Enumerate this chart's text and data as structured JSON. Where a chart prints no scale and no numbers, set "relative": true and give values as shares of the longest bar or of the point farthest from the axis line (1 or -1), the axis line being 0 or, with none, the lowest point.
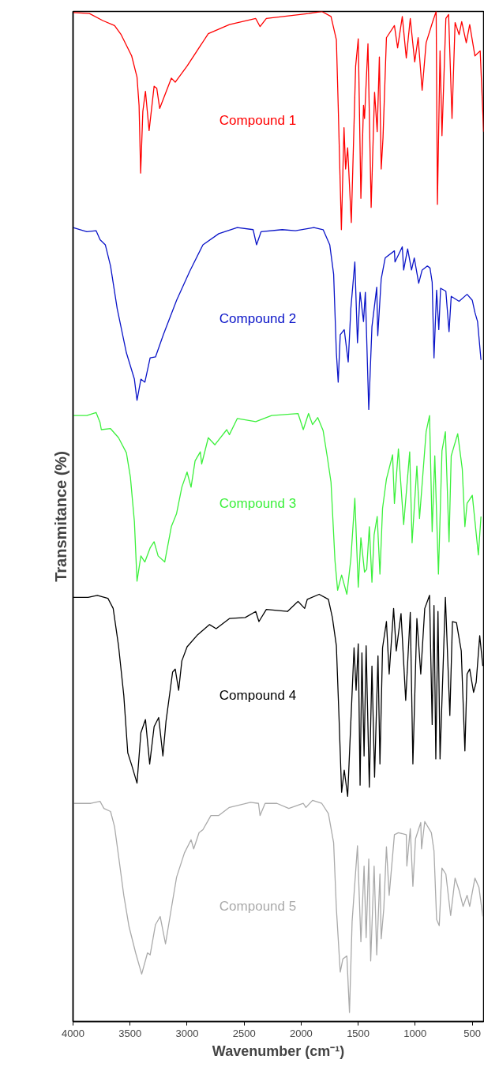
{
  "chart_data": {
    "type": "line",
    "relative": true,
    "xlabel": "Wavenumber (cm⁻¹)",
    "ylabel": "Transmitance (%)",
    "xlim": [
      4000,
      400
    ],
    "xticks": [
      4000,
      3500,
      3000,
      2500,
      2000,
      1500,
      1000,
      500
    ],
    "grid": false,
    "line_style": "solid",
    "marker": "none",
    "series": [
      {
        "name": "Compound 1",
        "color": "#ff0000",
        "x": [
          3999,
          3856,
          3740,
          3636,
          3578,
          3486,
          3439,
          3421,
          3407,
          3388,
          3365,
          3333,
          3289,
          3266,
          3240,
          3138,
          3104,
          3000,
          2814,
          2629,
          2398,
          2360,
          2305,
          1935,
          1819,
          1738,
          1691,
          1675,
          1647,
          1624,
          1610,
          1592,
          1560,
          1522,
          1499,
          1476,
          1453,
          1444,
          1414,
          1386,
          1356,
          1333,
          1314,
          1298,
          1282,
          1252,
          1182,
          1154,
          1113,
          1078,
          1043,
          1004,
          974,
          939,
          904,
          846,
          816,
          805,
          782,
          765,
          731,
          707,
          677,
          650,
          615,
          592,
          552,
          522,
          476,
          430,
          400
        ],
        "values": [
          0.999,
          0.998,
          0.991,
          0.986,
          0.977,
          0.956,
          0.935,
          0.907,
          0.84,
          0.901,
          0.921,
          0.882,
          0.926,
          0.924,
          0.904,
          0.934,
          0.93,
          0.946,
          0.978,
          0.987,
          0.993,
          0.985,
          0.993,
          0.998,
          1.0,
          0.995,
          0.972,
          0.907,
          0.784,
          0.885,
          0.844,
          0.865,
          0.791,
          0.946,
          0.973,
          0.815,
          0.907,
          0.894,
          0.968,
          0.806,
          0.92,
          0.881,
          0.955,
          0.844,
          0.875,
          0.974,
          0.986,
          0.964,
          0.995,
          0.954,
          0.993,
          0.95,
          0.974,
          0.922,
          0.969,
          0.99,
          1.0,
          0.809,
          0.961,
          0.877,
          0.993,
          0.997,
          0.894,
          0.989,
          0.977,
          0.99,
          0.969,
          0.987,
          0.956,
          0.961,
          0.881
        ]
      },
      {
        "name": "Compound 2",
        "color": "#0a14c8",
        "x": [
          4000,
          3879,
          3798,
          3763,
          3717,
          3671,
          3613,
          3532,
          3462,
          3439,
          3405,
          3370,
          3324,
          3277,
          3208,
          3092,
          2976,
          2861,
          2722,
          2560,
          2421,
          2391,
          2351,
          2166,
          2050,
          1888,
          1807,
          1749,
          1715,
          1691,
          1675,
          1657,
          1622,
          1587,
          1564,
          1529,
          1506,
          1483,
          1453,
          1437,
          1407,
          1379,
          1337,
          1328,
          1298,
          1263,
          1182,
          1177,
          1113,
          1101,
          1066,
          1032,
          1008,
          969,
          939,
          893,
          870,
          851,
          835,
          812,
          793,
          777,
          731,
          703,
          684,
          615,
          545,
          499,
          476,
          453,
          423
        ],
        "values": [
          0.786,
          0.782,
          0.783,
          0.774,
          0.769,
          0.748,
          0.706,
          0.662,
          0.636,
          0.615,
          0.636,
          0.633,
          0.657,
          0.658,
          0.68,
          0.714,
          0.743,
          0.769,
          0.78,
          0.786,
          0.784,
          0.769,
          0.782,
          0.784,
          0.783,
          0.786,
          0.784,
          0.769,
          0.74,
          0.662,
          0.633,
          0.68,
          0.685,
          0.653,
          0.706,
          0.752,
          0.672,
          0.722,
          0.693,
          0.722,
          0.606,
          0.688,
          0.727,
          0.679,
          0.735,
          0.756,
          0.763,
          0.752,
          0.767,
          0.744,
          0.765,
          0.744,
          0.756,
          0.731,
          0.744,
          0.748,
          0.746,
          0.732,
          0.657,
          0.724,
          0.685,
          0.726,
          0.723,
          0.683,
          0.718,
          0.713,
          0.72,
          0.714,
          0.702,
          0.693,
          0.655
        ]
      },
      {
        "name": "Compound 3",
        "color": "#3cf03c",
        "x": [
          4000,
          3879,
          3798,
          3763,
          3752,
          3671,
          3601,
          3532,
          3497,
          3462,
          3439,
          3405,
          3370,
          3324,
          3289,
          3254,
          3196,
          3138,
          3092,
          3046,
          3000,
          2965,
          2930,
          2884,
          2872,
          2814,
          2756,
          2652,
          2629,
          2560,
          2398,
          2259,
          2027,
          1981,
          1935,
          1900,
          1854,
          1807,
          1772,
          1738,
          1703,
          1680,
          1645,
          1599,
          1564,
          1529,
          1499,
          1476,
          1444,
          1425,
          1402,
          1379,
          1360,
          1333,
          1309,
          1286,
          1252,
          1198,
          1182,
          1147,
          1101,
          1048,
          1027,
          985,
          962,
          904,
          874,
          851,
          828,
          796,
          765,
          735,
          703,
          684,
          627,
          587,
          564,
          545,
          499,
          446,
          423
        ],
        "values": [
          0.6,
          0.6,
          0.603,
          0.593,
          0.586,
          0.587,
          0.578,
          0.563,
          0.539,
          0.495,
          0.436,
          0.461,
          0.455,
          0.469,
          0.475,
          0.461,
          0.455,
          0.49,
          0.503,
          0.529,
          0.544,
          0.529,
          0.555,
          0.564,
          0.552,
          0.578,
          0.571,
          0.586,
          0.581,
          0.597,
          0.594,
          0.6,
          0.602,
          0.586,
          0.602,
          0.591,
          0.598,
          0.585,
          0.56,
          0.534,
          0.456,
          0.427,
          0.442,
          0.423,
          0.458,
          0.518,
          0.43,
          0.479,
          0.445,
          0.448,
          0.49,
          0.435,
          0.482,
          0.5,
          0.443,
          0.508,
          0.537,
          0.561,
          0.513,
          0.567,
          0.492,
          0.564,
          0.474,
          0.55,
          0.498,
          0.584,
          0.6,
          0.485,
          0.56,
          0.443,
          0.565,
          0.584,
          0.475,
          0.56,
          0.582,
          0.547,
          0.49,
          0.513,
          0.521,
          0.462,
          0.5
        ]
      },
      {
        "name": "Compound 4",
        "color": "#000000",
        "x": [
          4000,
          3868,
          3787,
          3694,
          3648,
          3601,
          3555,
          3520,
          3486,
          3439,
          3405,
          3365,
          3328,
          3289,
          3249,
          3212,
          3185,
          3127,
          3104,
          3074,
          3046,
          3000,
          2907,
          2803,
          2745,
          2629,
          2490,
          2398,
          2370,
          2305,
          2120,
          2027,
          1969,
          1946,
          1842,
          1761,
          1726,
          1691,
          1668,
          1645,
          1622,
          1592,
          1564,
          1536,
          1518,
          1499,
          1483,
          1467,
          1448,
          1430,
          1402,
          1379,
          1356,
          1326,
          1309,
          1286,
          1252,
          1228,
          1189,
          1166,
          1124,
          1083,
          1043,
          1020,
          985,
          951,
          916,
          874,
          851,
          835,
          819,
          800,
          782,
          735,
          696,
          673,
          638,
          596,
          564,
          545,
          522,
          488,
          465,
          434,
          407
        ],
        "values": [
          0.42,
          0.42,
          0.422,
          0.419,
          0.409,
          0.372,
          0.323,
          0.266,
          0.254,
          0.236,
          0.286,
          0.299,
          0.255,
          0.292,
          0.301,
          0.263,
          0.297,
          0.346,
          0.349,
          0.328,
          0.357,
          0.371,
          0.383,
          0.393,
          0.389,
          0.399,
          0.4,
          0.406,
          0.396,
          0.408,
          0.406,
          0.416,
          0.409,
          0.418,
          0.423,
          0.418,
          0.4,
          0.372,
          0.302,
          0.227,
          0.249,
          0.223,
          0.297,
          0.37,
          0.328,
          0.374,
          0.234,
          0.365,
          0.263,
          0.372,
          0.232,
          0.352,
          0.242,
          0.362,
          0.255,
          0.37,
          0.396,
          0.344,
          0.409,
          0.367,
          0.404,
          0.318,
          0.405,
          0.255,
          0.399,
          0.344,
          0.409,
          0.422,
          0.294,
          0.412,
          0.26,
          0.406,
          0.26,
          0.42,
          0.303,
          0.396,
          0.395,
          0.367,
          0.268,
          0.344,
          0.349,
          0.326,
          0.336,
          0.382,
          0.352
        ]
      },
      {
        "name": "Compound 5",
        "color": "#aaaaaa",
        "x": [
          3995,
          3844,
          3763,
          3729,
          3671,
          3636,
          3601,
          3555,
          3509,
          3451,
          3398,
          3347,
          3324,
          3277,
          3236,
          3189,
          3138,
          3092,
          3023,
          2965,
          2942,
          2895,
          2861,
          2791,
          2722,
          2629,
          2444,
          2374,
          2360,
          2316,
          2212,
          2108,
          1981,
          1958,
          1900,
          1819,
          1761,
          1715,
          1691,
          1657,
          1634,
          1599,
          1576,
          1553,
          1506,
          1476,
          1448,
          1430,
          1407,
          1390,
          1360,
          1337,
          1309,
          1298,
          1275,
          1252,
          1228,
          1182,
          1147,
          1078,
          1073,
          1043,
          1020,
          997,
          951,
          944,
          916,
          858,
          835,
          812,
          789,
          765,
          731,
          689,
          650,
          615,
          580,
          545,
          522,
          476,
          441,
          407
        ],
        "values": [
          0.216,
          0.216,
          0.218,
          0.211,
          0.208,
          0.193,
          0.164,
          0.125,
          0.094,
          0.068,
          0.047,
          0.068,
          0.066,
          0.096,
          0.104,
          0.077,
          0.112,
          0.143,
          0.167,
          0.18,
          0.171,
          0.187,
          0.19,
          0.204,
          0.204,
          0.212,
          0.217,
          0.216,
          0.204,
          0.216,
          0.216,
          0.211,
          0.216,
          0.212,
          0.219,
          0.216,
          0.206,
          0.177,
          0.112,
          0.049,
          0.062,
          0.065,
          0.009,
          0.099,
          0.174,
          0.079,
          0.154,
          0.083,
          0.161,
          0.06,
          0.154,
          0.066,
          0.146,
          0.082,
          0.112,
          0.173,
          0.125,
          0.185,
          0.187,
          0.185,
          0.154,
          0.191,
          0.134,
          0.181,
          0.197,
          0.171,
          0.198,
          0.187,
          0.169,
          0.101,
          0.095,
          0.152,
          0.146,
          0.105,
          0.142,
          0.13,
          0.114,
          0.125,
          0.114,
          0.142,
          0.133,
          0.104
        ]
      }
    ]
  }
}
